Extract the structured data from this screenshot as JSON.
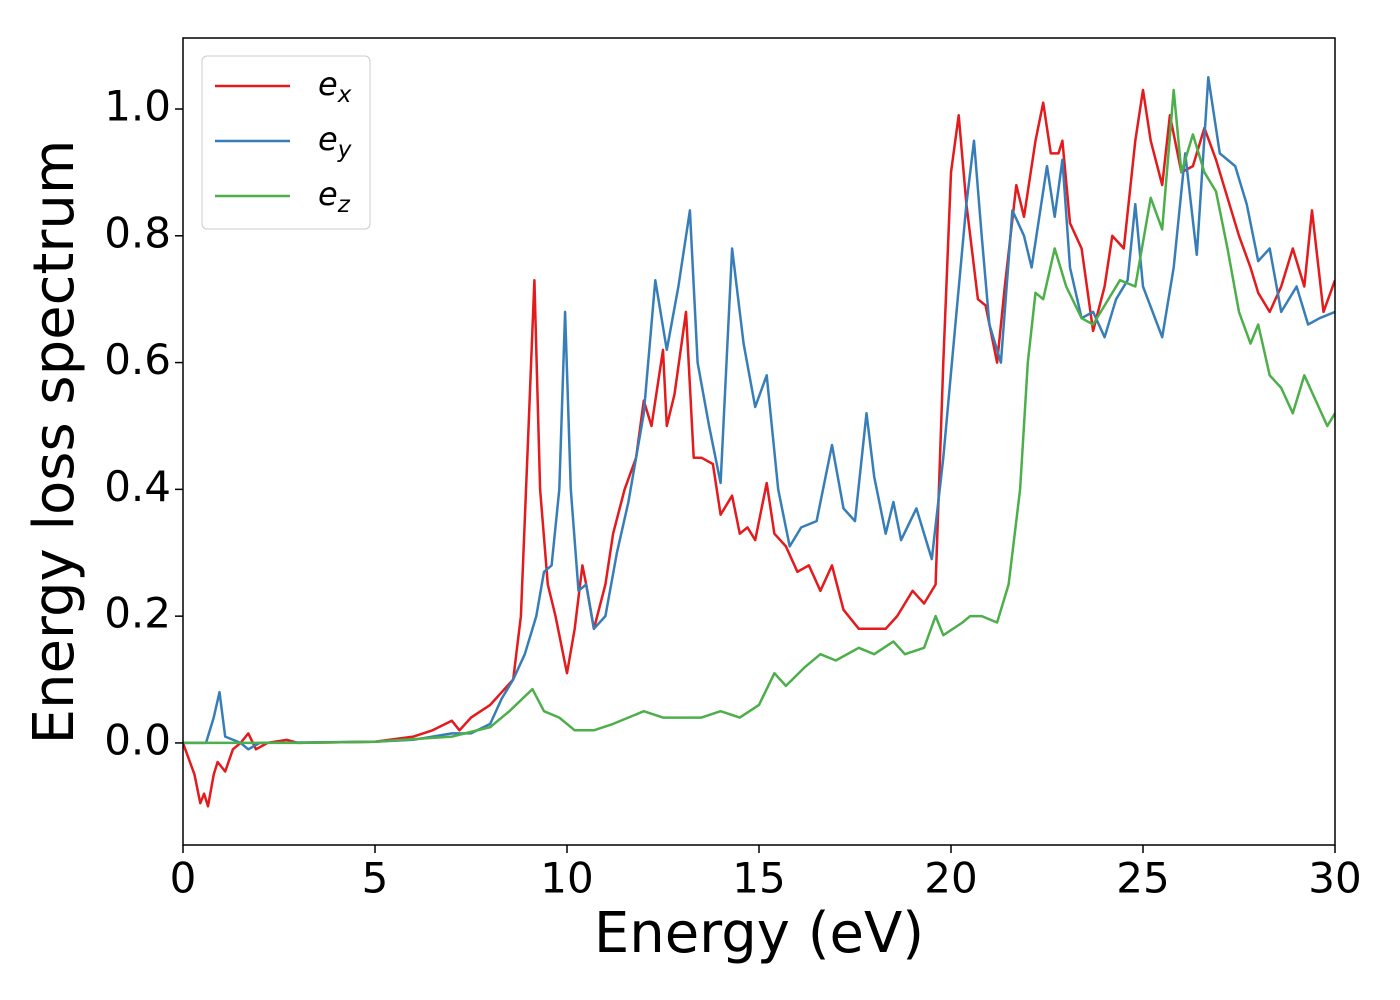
{
  "chart_data": {
    "type": "line",
    "xlabel": "Energy (eV)",
    "ylabel": "Energy loss spectrum",
    "xlim": [
      0,
      30
    ],
    "ylim": [
      -0.161,
      1.112
    ],
    "xticks": [
      0,
      5,
      10,
      15,
      20,
      25,
      30
    ],
    "yticks": [
      {
        "value": 0,
        "label": "0.0"
      },
      {
        "value": 0.2,
        "label": "0.2"
      },
      {
        "value": 0.4,
        "label": "0.4"
      },
      {
        "value": 0.6,
        "label": "0.6"
      },
      {
        "value": 0.8,
        "label": "0.8"
      },
      {
        "value": 1.0,
        "label": "1.0"
      }
    ],
    "grid": false,
    "legend": "upper left",
    "series": [
      {
        "name": "e_x",
        "color": "#e41a1c",
        "x": [
          0,
          0.3,
          0.45,
          0.55,
          0.65,
          0.8,
          0.9,
          1.1,
          1.3,
          1.5,
          1.7,
          1.9,
          2.2,
          2.7,
          3,
          5,
          6,
          6.5,
          7,
          7.2,
          7.5,
          8,
          8.3,
          8.6,
          8.8,
          9.0,
          9.15,
          9.3,
          9.5,
          9.7,
          10.0,
          10.2,
          10.4,
          10.5,
          10.7,
          11,
          11.2,
          11.5,
          11.8,
          12,
          12.2,
          12.5,
          12.6,
          12.8,
          13.1,
          13.3,
          13.5,
          13.8,
          14.0,
          14.3,
          14.5,
          14.7,
          14.9,
          15.2,
          15.4,
          15.7,
          16.0,
          16.3,
          16.6,
          16.9,
          17.2,
          17.6,
          18.0,
          18.3,
          18.6,
          19.0,
          19.3,
          19.6,
          19.8,
          20.0,
          20.2,
          20.4,
          20.7,
          20.9,
          21.2,
          21.4,
          21.7,
          21.9,
          22.2,
          22.4,
          22.6,
          22.8,
          22.9,
          23.1,
          23.4,
          23.7,
          24.0,
          24.2,
          24.5,
          24.8,
          25.0,
          25.2,
          25.5,
          25.7,
          26.0,
          26.3,
          26.6,
          26.9,
          27.2,
          27.5,
          27.8,
          28.0,
          28.3,
          28.6,
          28.9,
          29.2,
          29.4,
          29.7,
          30
        ],
        "values": [
          0,
          -0.05,
          -0.095,
          -0.08,
          -0.1,
          -0.05,
          -0.03,
          -0.045,
          -0.01,
          0,
          0.015,
          -0.01,
          0,
          0.005,
          0,
          0.002,
          0.01,
          0.02,
          0.035,
          0.02,
          0.04,
          0.06,
          0.08,
          0.1,
          0.2,
          0.5,
          0.73,
          0.4,
          0.25,
          0.2,
          0.11,
          0.18,
          0.28,
          0.25,
          0.18,
          0.25,
          0.33,
          0.4,
          0.45,
          0.54,
          0.5,
          0.62,
          0.5,
          0.55,
          0.68,
          0.45,
          0.45,
          0.44,
          0.36,
          0.39,
          0.33,
          0.34,
          0.32,
          0.41,
          0.33,
          0.31,
          0.27,
          0.28,
          0.24,
          0.28,
          0.21,
          0.18,
          0.18,
          0.18,
          0.2,
          0.24,
          0.22,
          0.25,
          0.6,
          0.9,
          0.99,
          0.85,
          0.7,
          0.69,
          0.6,
          0.72,
          0.88,
          0.83,
          0.95,
          1.01,
          0.93,
          0.93,
          0.95,
          0.82,
          0.78,
          0.65,
          0.72,
          0.8,
          0.78,
          0.95,
          1.03,
          0.95,
          0.88,
          0.99,
          0.9,
          0.91,
          0.97,
          0.92,
          0.86,
          0.8,
          0.75,
          0.71,
          0.68,
          0.72,
          0.78,
          0.72,
          0.84,
          0.68,
          0.73
        ]
      },
      {
        "name": "e_y",
        "color": "#377eb8",
        "x": [
          0,
          0.6,
          0.8,
          0.95,
          1.1,
          1.5,
          1.7,
          2,
          5,
          6,
          7,
          7.5,
          8,
          8.3,
          8.6,
          8.9,
          9.2,
          9.4,
          9.6,
          9.8,
          9.95,
          10.1,
          10.3,
          10.5,
          10.7,
          11,
          11.3,
          11.6,
          12,
          12.3,
          12.6,
          12.9,
          13.2,
          13.4,
          13.7,
          14.0,
          14.3,
          14.6,
          14.9,
          15.2,
          15.5,
          15.8,
          16.1,
          16.5,
          16.9,
          17.2,
          17.5,
          17.8,
          18.0,
          18.3,
          18.5,
          18.7,
          19.1,
          19.5,
          19.8,
          20.1,
          20.4,
          20.6,
          20.8,
          21.0,
          21.3,
          21.6,
          21.9,
          22.1,
          22.5,
          22.7,
          22.9,
          23.1,
          23.4,
          23.7,
          24.0,
          24.3,
          24.6,
          24.8,
          25.0,
          25.5,
          25.8,
          26.1,
          26.4,
          26.7,
          27.0,
          27.4,
          27.7,
          28.0,
          28.3,
          28.6,
          29.0,
          29.3,
          29.6,
          30
        ],
        "values": [
          0,
          0,
          0.04,
          0.08,
          0.01,
          0,
          -0.01,
          0,
          0.002,
          0.005,
          0.015,
          0.015,
          0.03,
          0.07,
          0.1,
          0.14,
          0.2,
          0.27,
          0.28,
          0.4,
          0.68,
          0.4,
          0.24,
          0.25,
          0.18,
          0.2,
          0.3,
          0.38,
          0.52,
          0.73,
          0.62,
          0.72,
          0.84,
          0.6,
          0.5,
          0.41,
          0.78,
          0.63,
          0.53,
          0.58,
          0.4,
          0.31,
          0.34,
          0.35,
          0.47,
          0.37,
          0.35,
          0.52,
          0.42,
          0.33,
          0.38,
          0.32,
          0.37,
          0.29,
          0.45,
          0.65,
          0.85,
          0.95,
          0.8,
          0.66,
          0.6,
          0.84,
          0.8,
          0.75,
          0.91,
          0.83,
          0.92,
          0.75,
          0.67,
          0.68,
          0.64,
          0.7,
          0.73,
          0.85,
          0.72,
          0.64,
          0.75,
          0.93,
          0.77,
          1.05,
          0.93,
          0.91,
          0.85,
          0.76,
          0.78,
          0.68,
          0.72,
          0.66,
          0.67,
          0.68
        ]
      },
      {
        "name": "e_z",
        "color": "#4daf4a",
        "x": [
          0,
          1,
          3,
          5,
          7,
          8,
          8.5,
          9.1,
          9.4,
          9.8,
          10.2,
          10.7,
          11.2,
          12.0,
          12.5,
          13.0,
          13.5,
          14.0,
          14.5,
          15.0,
          15.4,
          15.7,
          16.2,
          16.6,
          17.0,
          17.6,
          18.0,
          18.5,
          18.8,
          19.3,
          19.6,
          19.8,
          20.3,
          20.5,
          20.8,
          21.2,
          21.5,
          21.8,
          22.0,
          22.2,
          22.4,
          22.7,
          23.0,
          23.4,
          23.7,
          24.0,
          24.4,
          24.8,
          25.2,
          25.5,
          25.8,
          26.0,
          26.3,
          26.6,
          26.9,
          27.2,
          27.5,
          27.8,
          28.0,
          28.3,
          28.6,
          28.9,
          29.2,
          29.5,
          29.8,
          30
        ],
        "values": [
          0,
          0,
          0,
          0.002,
          0.01,
          0.025,
          0.05,
          0.085,
          0.05,
          0.04,
          0.02,
          0.02,
          0.03,
          0.05,
          0.04,
          0.04,
          0.04,
          0.05,
          0.04,
          0.06,
          0.11,
          0.09,
          0.12,
          0.14,
          0.13,
          0.15,
          0.14,
          0.16,
          0.14,
          0.15,
          0.2,
          0.17,
          0.19,
          0.2,
          0.2,
          0.19,
          0.25,
          0.4,
          0.6,
          0.71,
          0.7,
          0.78,
          0.72,
          0.67,
          0.66,
          0.69,
          0.73,
          0.72,
          0.86,
          0.81,
          1.03,
          0.9,
          0.96,
          0.9,
          0.87,
          0.78,
          0.68,
          0.63,
          0.66,
          0.58,
          0.56,
          0.52,
          0.58,
          0.54,
          0.5,
          0.52
        ]
      }
    ]
  }
}
